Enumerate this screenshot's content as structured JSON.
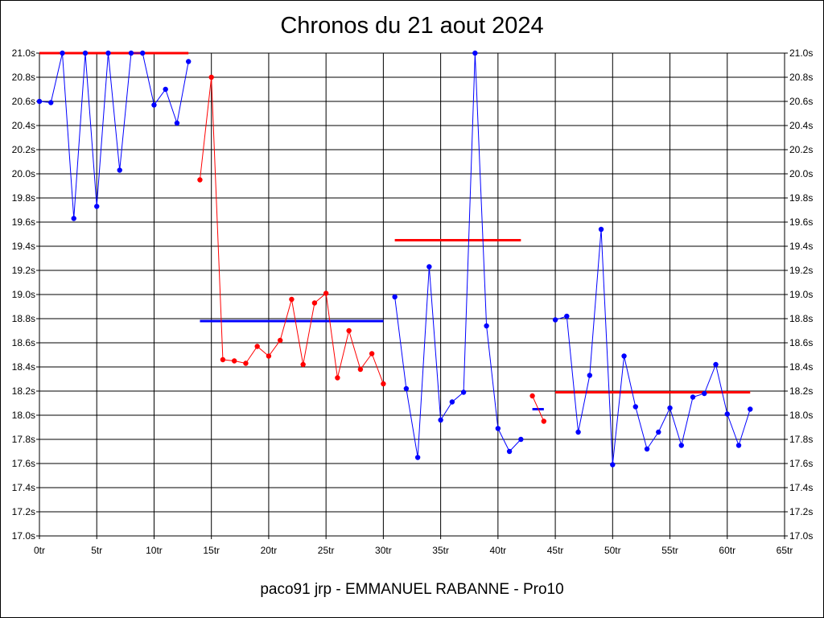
{
  "chart_data": {
    "type": "line",
    "title": "Chronos du 21 aout 2024",
    "footer": "paco91 jrp - EMMANUEL RABANNE - Pro10",
    "xlabel": "",
    "ylabel": "",
    "xlim": [
      0,
      65
    ],
    "ylim": [
      17.0,
      21.0
    ],
    "grid": true,
    "x_ticks": [
      0,
      5,
      10,
      15,
      20,
      25,
      30,
      35,
      40,
      45,
      50,
      55,
      60,
      65
    ],
    "x_tick_labels": [
      "0tr",
      "5tr",
      "10tr",
      "15tr",
      "20tr",
      "25tr",
      "30tr",
      "35tr",
      "40tr",
      "45tr",
      "50tr",
      "55tr",
      "60tr",
      "65tr"
    ],
    "y_ticks": [
      17.0,
      17.2,
      17.4,
      17.6,
      17.8,
      18.0,
      18.2,
      18.4,
      18.6,
      18.8,
      19.0,
      19.2,
      19.4,
      19.6,
      19.8,
      20.0,
      20.2,
      20.4,
      20.6,
      20.8,
      21.0
    ],
    "y_tick_labels": [
      "17.0s",
      "17.2s",
      "17.4s",
      "17.6s",
      "17.8s",
      "18.0s",
      "18.2s",
      "18.4s",
      "18.6s",
      "18.8s",
      "19.0s",
      "19.2s",
      "19.4s",
      "19.6s",
      "19.8s",
      "20.0s",
      "20.2s",
      "20.4s",
      "20.6s",
      "20.8s",
      "21.0s"
    ],
    "series": [
      {
        "color": "#0000ff",
        "x": [
          0,
          1,
          2,
          3,
          4,
          5,
          6,
          7,
          8,
          9,
          10,
          11,
          12,
          13
        ],
        "values": [
          20.6,
          20.59,
          21.0,
          19.63,
          21.0,
          19.73,
          21.0,
          20.03,
          21.0,
          21.0,
          20.57,
          20.7,
          20.42,
          20.93
        ]
      },
      {
        "color": "#ff0000",
        "x": [
          14,
          15,
          16,
          17,
          18,
          19,
          20,
          21,
          22,
          23,
          24,
          25,
          26,
          27,
          28,
          29,
          30
        ],
        "values": [
          19.95,
          20.8,
          18.46,
          18.45,
          18.43,
          18.57,
          18.49,
          18.62,
          18.96,
          18.42,
          18.93,
          19.01,
          18.31,
          18.7,
          18.38,
          18.51,
          18.26
        ]
      },
      {
        "color": "#0000ff",
        "x": [
          31,
          32,
          33,
          34,
          35,
          36,
          37,
          38,
          39,
          40,
          41,
          42
        ],
        "values": [
          18.98,
          18.22,
          17.65,
          19.23,
          17.96,
          18.11,
          18.19,
          21.0,
          18.74,
          17.89,
          17.7,
          17.8
        ]
      },
      {
        "color": "#ff0000",
        "x": [
          43,
          44
        ],
        "values": [
          18.16,
          17.95
        ]
      },
      {
        "color": "#0000ff",
        "x": [
          45,
          46,
          47,
          48,
          49,
          50,
          51,
          52,
          53,
          54,
          55,
          56,
          57,
          58,
          59,
          60,
          61,
          62
        ],
        "values": [
          18.79,
          18.82,
          17.86,
          18.33,
          19.54,
          17.59,
          18.49,
          18.07,
          17.72,
          17.86,
          18.06,
          17.75,
          18.15,
          18.18,
          18.42,
          18.01,
          17.75,
          18.05
        ]
      }
    ],
    "averages": [
      {
        "color": "#ff0000",
        "x_start": 0,
        "x_end": 13,
        "value": 21.0
      },
      {
        "color": "#0000ff",
        "x_start": 14,
        "x_end": 30,
        "value": 18.78
      },
      {
        "color": "#ff0000",
        "x_start": 31,
        "x_end": 42,
        "value": 19.45
      },
      {
        "color": "#0000ff",
        "x_start": 43,
        "x_end": 44,
        "value": 18.05
      },
      {
        "color": "#ff0000",
        "x_start": 45,
        "x_end": 62,
        "value": 18.19
      }
    ]
  }
}
